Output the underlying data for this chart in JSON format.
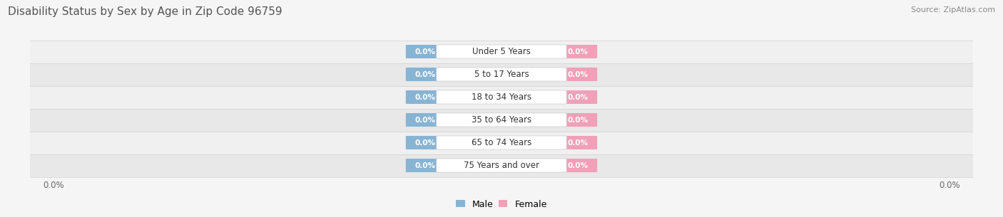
{
  "title": "Disability Status by Sex by Age in Zip Code 96759",
  "source": "Source: ZipAtlas.com",
  "categories": [
    "Under 5 Years",
    "5 to 17 Years",
    "18 to 34 Years",
    "35 to 64 Years",
    "65 to 74 Years",
    "75 Years and over"
  ],
  "male_values": [
    0.0,
    0.0,
    0.0,
    0.0,
    0.0,
    0.0
  ],
  "female_values": [
    0.0,
    0.0,
    0.0,
    0.0,
    0.0,
    0.0
  ],
  "male_color": "#88b4d4",
  "female_color": "#f0a0b8",
  "male_label": "Male",
  "female_label": "Female",
  "title_fontsize": 11,
  "source_fontsize": 8,
  "label_fontsize": 8.5,
  "value_fontsize": 7.5,
  "row_colors": [
    "#f0f0f0",
    "#e8e8e8"
  ],
  "row_separator_color": "#d0d0d0",
  "tick_label_color": "#666666",
  "tick_fontsize": 8.5
}
